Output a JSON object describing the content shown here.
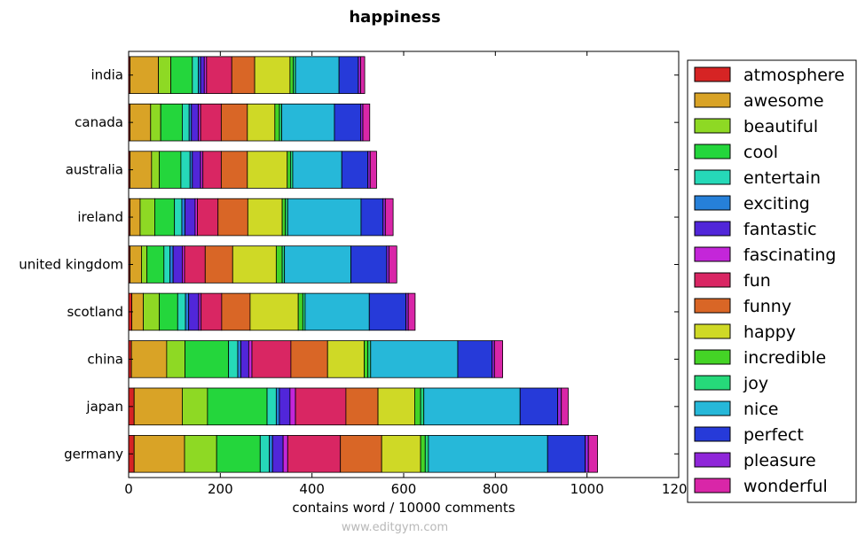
{
  "chart_data": {
    "type": "bar",
    "orientation": "horizontal",
    "stacked": true,
    "title": "happiness",
    "xlabel": "contains word / 10000 comments",
    "ylabel": "",
    "xlim": [
      0,
      1200
    ],
    "xticks": [
      "0",
      "200",
      "400",
      "600",
      "800",
      "1000",
      "1200"
    ],
    "grid": false,
    "legend_position": "right",
    "categories": [
      "india",
      "canada",
      "australia",
      "ireland",
      "united kingdom",
      "scotland",
      "china",
      "japan",
      "germany"
    ],
    "series": [
      {
        "name": "atmosphere",
        "color": "#d62424",
        "values": [
          3,
          3,
          3,
          3,
          3,
          7,
          6,
          12,
          12
        ]
      },
      {
        "name": "awesome",
        "color": "#d9a326",
        "values": [
          62,
          45,
          47,
          22,
          25,
          25,
          77,
          105,
          110
        ]
      },
      {
        "name": "beautiful",
        "color": "#8ed924",
        "values": [
          27,
          22,
          17,
          32,
          12,
          35,
          40,
          55,
          70
        ]
      },
      {
        "name": "cool",
        "color": "#24d63c",
        "values": [
          47,
          47,
          47,
          43,
          37,
          40,
          95,
          130,
          95
        ]
      },
      {
        "name": "entertain",
        "color": "#26d9b8",
        "values": [
          13,
          15,
          20,
          16,
          13,
          17,
          20,
          20,
          20
        ]
      },
      {
        "name": "exciting",
        "color": "#2680d9",
        "values": [
          5,
          5,
          5,
          7,
          7,
          7,
          7,
          7,
          7
        ]
      },
      {
        "name": "fantastic",
        "color": "#5126d9",
        "values": [
          8,
          15,
          18,
          22,
          20,
          22,
          17,
          23,
          23
        ]
      },
      {
        "name": "fascinating",
        "color": "#c426d9",
        "values": [
          5,
          5,
          5,
          5,
          5,
          5,
          7,
          12,
          10
        ]
      },
      {
        "name": "fun",
        "color": "#d92663",
        "values": [
          55,
          45,
          40,
          45,
          45,
          45,
          85,
          110,
          115
        ]
      },
      {
        "name": "funny",
        "color": "#d96626",
        "values": [
          50,
          57,
          57,
          65,
          60,
          62,
          80,
          70,
          90
        ]
      },
      {
        "name": "happy",
        "color": "#cfd926",
        "values": [
          77,
          60,
          87,
          75,
          95,
          105,
          80,
          80,
          85
        ]
      },
      {
        "name": "incredible",
        "color": "#44d426",
        "values": [
          7,
          10,
          7,
          7,
          13,
          10,
          8,
          13,
          10
        ]
      },
      {
        "name": "joy",
        "color": "#26d97a",
        "values": [
          5,
          5,
          5,
          5,
          5,
          5,
          6,
          7,
          7
        ]
      },
      {
        "name": "nice",
        "color": "#26b8d9",
        "values": [
          95,
          115,
          107,
          160,
          145,
          140,
          190,
          210,
          260
        ]
      },
      {
        "name": "perfect",
        "color": "#263ad9",
        "values": [
          42,
          57,
          57,
          48,
          78,
          80,
          75,
          82,
          82
        ]
      },
      {
        "name": "pleasure",
        "color": "#8f26d9",
        "values": [
          5,
          5,
          5,
          5,
          5,
          5,
          5,
          8,
          7
        ]
      },
      {
        "name": "wonderful",
        "color": "#d926a8",
        "values": [
          9,
          15,
          14,
          17,
          17,
          15,
          18,
          15,
          20
        ]
      }
    ]
  },
  "watermark": "www.editgym.com"
}
